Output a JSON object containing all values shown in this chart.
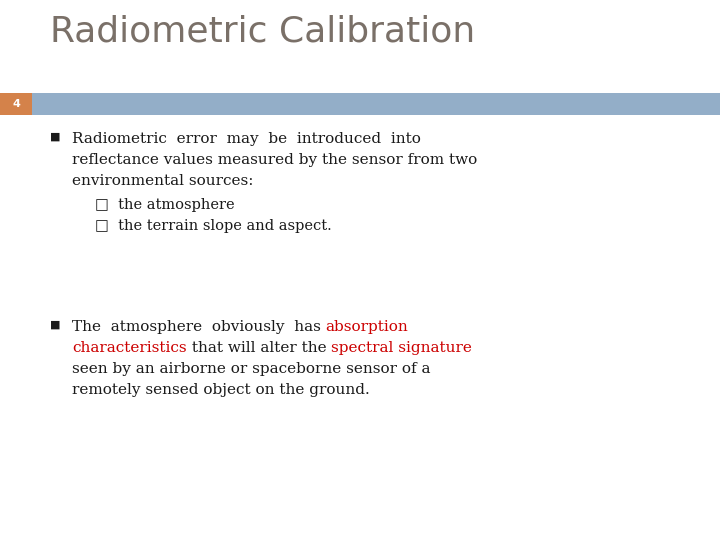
{
  "title": "Radiometric Calibration",
  "title_color": "#7a7068",
  "slide_number": "4",
  "slide_number_bg": "#d4824a",
  "slide_number_bar_color": "#93aec8",
  "bg_color": "#ffffff",
  "bullet_color": "#1a1a1a",
  "title_fontsize": 26,
  "body_fontsize": 11,
  "sub_fontsize": 10.5,
  "bullet1_line1": "Radiometric  error  may  be  introduced  into",
  "bullet1_line2": "reflectance values measured by the sensor from two",
  "bullet1_line3": "environmental sources:",
  "sub1": "□  the atmosphere",
  "sub2": "□  the terrain slope and aspect.",
  "b2_l1_black": "The  atmosphere  obviously  has ",
  "b2_l1_red": "absorption",
  "b2_l2_red1": "characteristics",
  "b2_l2_black": " that will alter the ",
  "b2_l2_red2": "spectral signature",
  "b2_l3": "seen by an airborne or spaceborne sensor of a",
  "b2_l4": "remotely sensed object on the ground.",
  "red_color": "#cc0000"
}
